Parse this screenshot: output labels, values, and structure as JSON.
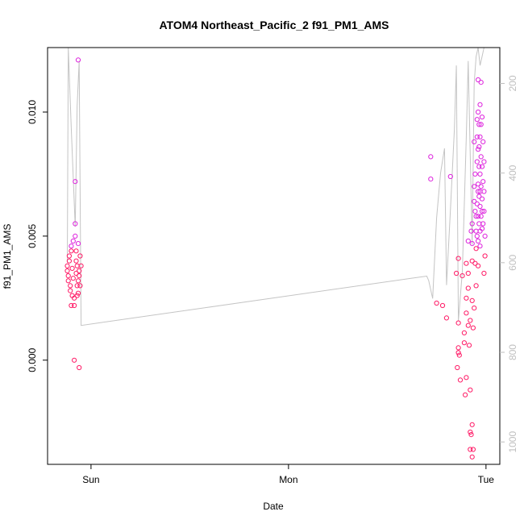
{
  "chart_data": {
    "type": "scatter",
    "title": "ATOM4 Northeast_Pacific_2 f91_PM1_AMS",
    "xlabel": "Date",
    "ylabel": "f91_PM1_AMS",
    "x_ticks": [
      {
        "label": "Sun",
        "day": 0
      },
      {
        "label": "Mon",
        "day": 1
      },
      {
        "label": "Tue",
        "day": 2
      }
    ],
    "y_ticks": [
      0.0,
      0.005,
      0.01
    ],
    "y_tick_labels": [
      "0.000",
      "0.005",
      "0.010"
    ],
    "right_ticks": [
      200,
      400,
      600,
      800,
      1000
    ],
    "right_tick_labels": [
      "200",
      "400",
      "600",
      "800",
      "1000"
    ],
    "xlim_days": [
      -0.22,
      2.07
    ],
    "ylim": [
      -0.0042,
      0.0126
    ],
    "right_ylim": [
      1050,
      120
    ],
    "colors": {
      "points_low": "#ff1a66",
      "points_high": "#dd22dd",
      "line": "#c4c4c4",
      "right_axis": "#bfbfbf"
    },
    "series": [
      {
        "kind": "scatter",
        "points": [
          [
            -0.12,
            0.0038
          ],
          [
            -0.12,
            0.0036
          ],
          [
            -0.115,
            0.0034
          ],
          [
            -0.115,
            0.0032
          ],
          [
            -0.11,
            0.004
          ],
          [
            -0.11,
            0.0042
          ],
          [
            -0.105,
            0.003
          ],
          [
            -0.105,
            0.0028
          ],
          [
            -0.1,
            0.0044
          ],
          [
            -0.1,
            0.0046
          ],
          [
            -0.1,
            0.0022
          ],
          [
            -0.095,
            0.0026
          ],
          [
            -0.095,
            0.0037
          ],
          [
            -0.09,
            0.0048
          ],
          [
            -0.09,
            0.0033
          ],
          [
            -0.085,
            0.0022
          ],
          [
            -0.085,
            0.0025
          ],
          [
            -0.08,
            0.0072
          ],
          [
            -0.08,
            0.0055
          ],
          [
            -0.08,
            0.005
          ],
          [
            -0.075,
            0.0044
          ],
          [
            -0.075,
            0.004
          ],
          [
            -0.075,
            0.0035
          ],
          [
            -0.07,
            0.003
          ],
          [
            -0.07,
            0.0026
          ],
          [
            -0.07,
            0.0038
          ],
          [
            -0.065,
            0.0032
          ],
          [
            -0.065,
            0.0047
          ],
          [
            -0.065,
            0.0027
          ],
          [
            -0.06,
            0.0034
          ],
          [
            -0.06,
            0.0036
          ],
          [
            -0.055,
            0.0042
          ],
          [
            -0.055,
            0.003
          ],
          [
            -0.05,
            0.0038
          ],
          [
            -0.085,
            0.0
          ],
          [
            -0.06,
            -0.0003
          ],
          [
            -0.065,
            0.0121
          ]
        ]
      },
      {
        "kind": "scatter",
        "points": [
          [
            1.72,
            0.0082
          ],
          [
            1.72,
            0.0073
          ],
          [
            1.75,
            0.0023
          ],
          [
            1.78,
            0.0022
          ],
          [
            1.8,
            0.0017
          ],
          [
            1.82,
            0.0074
          ],
          [
            1.85,
            0.0035
          ],
          [
            1.86,
            0.0041
          ],
          [
            1.86,
            0.0015
          ],
          [
            1.86,
            0.0005
          ],
          [
            1.86,
            0.0003
          ],
          [
            1.855,
            -0.0003
          ],
          [
            1.87,
            -0.0008
          ],
          [
            1.865,
            0.0002
          ],
          [
            1.88,
            0.0034
          ],
          [
            1.89,
            0.0011
          ],
          [
            1.89,
            0.0007
          ],
          [
            1.895,
            -0.0014
          ],
          [
            1.9,
            -0.0007
          ],
          [
            1.9,
            0.0019
          ],
          [
            1.9,
            0.0025
          ],
          [
            1.91,
            0.0035
          ],
          [
            1.91,
            0.0048
          ],
          [
            1.91,
            0.0014
          ],
          [
            1.915,
            0.0006
          ],
          [
            1.92,
            -0.0012
          ],
          [
            1.92,
            -0.0029
          ],
          [
            1.92,
            -0.0036
          ],
          [
            1.925,
            -0.003
          ],
          [
            1.93,
            0.004
          ],
          [
            1.93,
            0.0055
          ],
          [
            1.93,
            0.0024
          ],
          [
            1.935,
            0.0013
          ],
          [
            1.94,
            0.0064
          ],
          [
            1.94,
            0.007
          ],
          [
            1.94,
            0.0088
          ],
          [
            1.945,
            0.0075
          ],
          [
            1.945,
            0.006
          ],
          [
            1.95,
            0.0052
          ],
          [
            1.95,
            0.0045
          ],
          [
            1.95,
            0.003
          ],
          [
            1.955,
            0.0097
          ],
          [
            1.955,
            0.009
          ],
          [
            1.955,
            0.008
          ],
          [
            1.96,
            0.0113
          ],
          [
            1.96,
            0.01
          ],
          [
            1.96,
            0.0085
          ],
          [
            1.96,
            0.0068
          ],
          [
            1.96,
            0.0058
          ],
          [
            1.96,
            0.0048
          ],
          [
            1.965,
            0.0095
          ],
          [
            1.965,
            0.0078
          ],
          [
            1.965,
            0.0066
          ],
          [
            1.965,
            0.0055
          ],
          [
            1.97,
            0.0103
          ],
          [
            1.97,
            0.009
          ],
          [
            1.97,
            0.0075
          ],
          [
            1.97,
            0.0062
          ],
          [
            1.97,
            0.0052
          ],
          [
            1.975,
            0.0112
          ],
          [
            1.975,
            0.0082
          ],
          [
            1.975,
            0.007
          ],
          [
            1.975,
            0.0058
          ],
          [
            1.98,
            0.0098
          ],
          [
            1.98,
            0.0078
          ],
          [
            1.98,
            0.0065
          ],
          [
            1.98,
            0.006
          ],
          [
            1.985,
            0.0072
          ],
          [
            1.985,
            0.0055
          ],
          [
            1.99,
            0.008
          ],
          [
            1.99,
            0.0068
          ],
          [
            1.99,
            0.0035
          ],
          [
            1.995,
            0.005
          ],
          [
            1.995,
            0.0042
          ],
          [
            1.95,
            0.0058
          ],
          [
            1.955,
            0.005
          ],
          [
            1.945,
            0.0039
          ],
          [
            1.94,
            0.0021
          ],
          [
            1.935,
            -0.0036
          ],
          [
            1.93,
            -0.0026
          ],
          [
            1.96,
            0.0071
          ],
          [
            1.97,
            0.0046
          ],
          [
            1.975,
            0.0095
          ],
          [
            1.965,
            0.0086
          ],
          [
            1.955,
            0.0063
          ],
          [
            1.98,
            0.0053
          ],
          [
            1.985,
            0.0088
          ],
          [
            1.99,
            0.006
          ],
          [
            1.96,
            0.0038
          ],
          [
            1.97,
            0.0068
          ],
          [
            1.92,
            0.0016
          ],
          [
            1.91,
            0.0029
          ],
          [
            1.9,
            0.0039
          ],
          [
            1.93,
            0.0047
          ],
          [
            1.925,
            0.0052
          ],
          [
            1.93,
            -0.0039
          ]
        ]
      },
      {
        "kind": "line",
        "points": [
          [
            -0.12,
            600
          ],
          [
            -0.115,
            120
          ],
          [
            -0.1,
            300
          ],
          [
            -0.08,
            520
          ],
          [
            -0.07,
            250
          ],
          [
            -0.06,
            150
          ],
          [
            -0.05,
            740
          ],
          [
            1.7,
            630
          ],
          [
            1.71,
            640
          ],
          [
            1.73,
            680
          ],
          [
            1.75,
            500
          ],
          [
            1.77,
            400
          ],
          [
            1.79,
            345
          ],
          [
            1.8,
            650
          ],
          [
            1.82,
            480
          ],
          [
            1.84,
            300
          ],
          [
            1.85,
            160
          ],
          [
            1.86,
            730
          ],
          [
            1.88,
            620
          ],
          [
            1.9,
            320
          ],
          [
            1.91,
            150
          ],
          [
            1.93,
            560
          ],
          [
            1.94,
            200
          ],
          [
            1.95,
            140
          ],
          [
            1.96,
            120
          ],
          [
            1.97,
            160
          ],
          [
            1.98,
            140
          ],
          [
            1.99,
            120
          ]
        ]
      }
    ]
  }
}
